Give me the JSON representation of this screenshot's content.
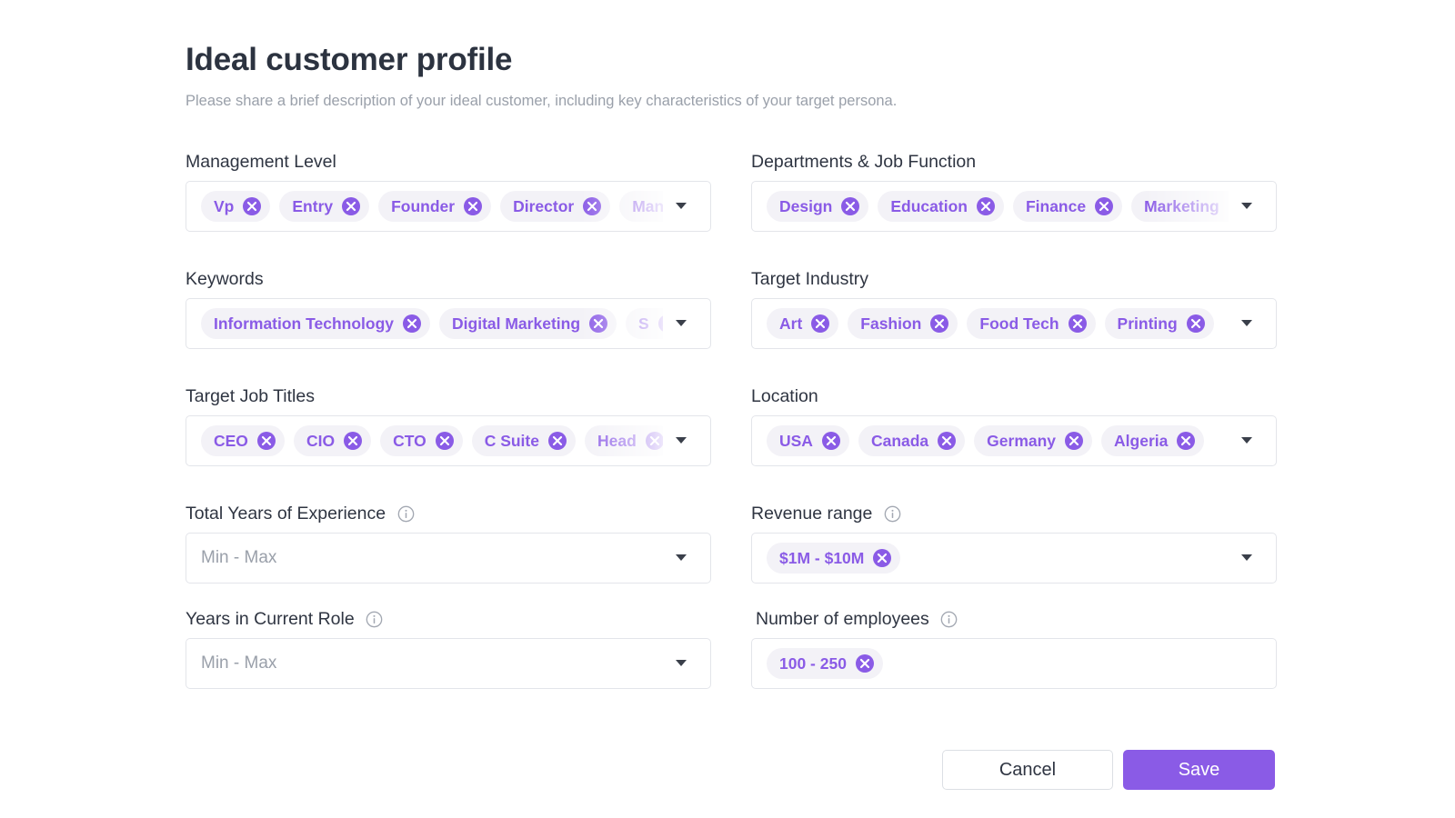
{
  "header": {
    "title": "Ideal customer profile",
    "subtitle": "Please share a brief description of your ideal customer, including key characteristics of your target persona."
  },
  "fields": {
    "management_level": {
      "label": "Management Level",
      "chips": [
        "Vp",
        "Entry",
        "Founder",
        "Director",
        "Manager"
      ]
    },
    "departments": {
      "label": "Departments & Job Function",
      "chips": [
        "Design",
        "Education",
        "Finance",
        "Marketing"
      ]
    },
    "keywords": {
      "label": "Keywords",
      "chips": [
        "Information Technology",
        "Digital Marketing",
        "S"
      ]
    },
    "target_industry": {
      "label": "Target Industry",
      "chips": [
        "Art",
        "Fashion",
        "Food Tech",
        "Printing"
      ]
    },
    "target_job_titles": {
      "label": "Target Job Titles",
      "chips": [
        "CEO",
        "CIO",
        "CTO",
        "C Suite",
        "Head"
      ]
    },
    "location": {
      "label": "Location",
      "chips": [
        "USA",
        "Canada",
        "Germany",
        "Algeria"
      ]
    },
    "total_years_experience": {
      "label": "Total Years of Experience",
      "placeholder": "Min - Max",
      "info_icon": "info-icon"
    },
    "revenue_range": {
      "label": "Revenue range",
      "chips": [
        "$1M - $10M"
      ],
      "info_icon": "info-icon"
    },
    "years_current_role": {
      "label": "Years in Current Role",
      "placeholder": "Min - Max",
      "info_icon": "info-icon"
    },
    "number_of_employees": {
      "label": "Number of employees",
      "chips": [
        "100 - 250"
      ],
      "info_icon": "info-icon"
    }
  },
  "actions": {
    "cancel_label": "Cancel",
    "save_label": "Save"
  },
  "colors": {
    "accent": "#8a5be6",
    "chip_background": "#f3f2f7",
    "border": "#e3e5ea",
    "title_text": "#2c3340",
    "muted_text": "#9aa0aa"
  }
}
